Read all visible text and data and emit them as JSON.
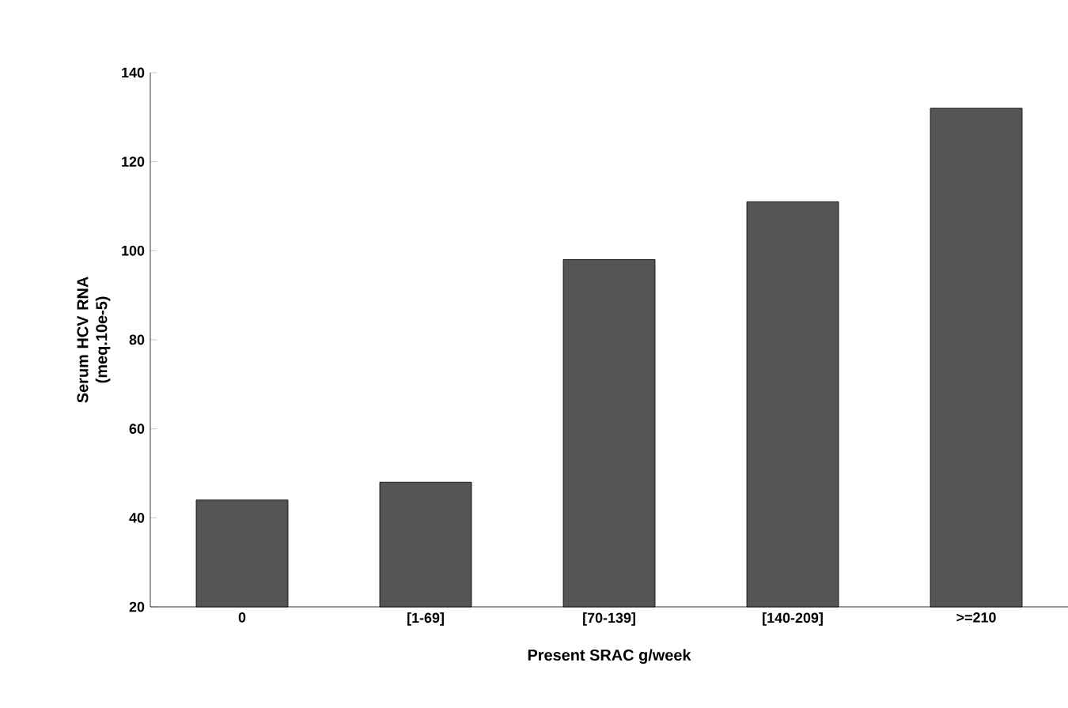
{
  "chart_data": {
    "type": "bar",
    "xlabel": "Present SRAC g/week",
    "ylabel": "Serum HCV RNA\n(meq.10e-5)",
    "categories": [
      "0",
      "[1-69]",
      "[70-139]",
      "[140-209]",
      ">=210"
    ],
    "values": [
      44,
      48,
      98,
      111,
      132
    ],
    "color": "#555555",
    "ylim": [
      20,
      140
    ],
    "yticks": [
      20,
      40,
      60,
      80,
      100,
      120,
      140
    ],
    "grid": false
  }
}
